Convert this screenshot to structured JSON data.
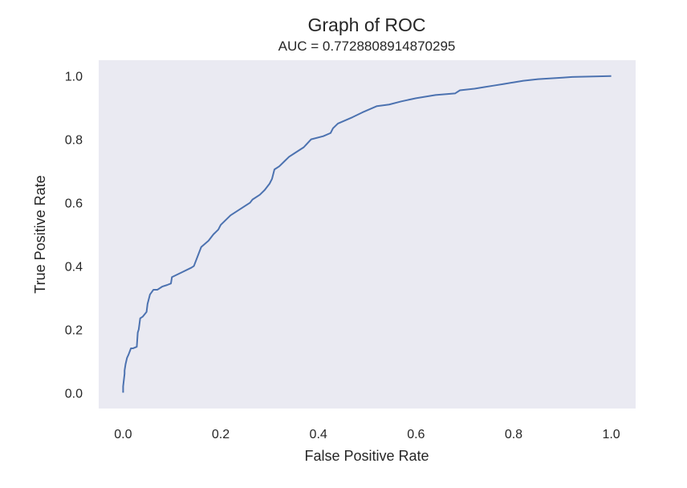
{
  "chart_data": {
    "type": "line",
    "title": "Graph of ROC",
    "subtitle": "AUC = 0.7728808914870295",
    "xlabel": "False Positive Rate",
    "ylabel": "True Positive Rate",
    "xlim": [
      -0.05,
      1.05
    ],
    "ylim": [
      -0.05,
      1.05
    ],
    "x_ticks": [
      "0.0",
      "0.2",
      "0.4",
      "0.6",
      "0.8",
      "1.0"
    ],
    "y_ticks": [
      "0.0",
      "0.2",
      "0.4",
      "0.6",
      "0.8",
      "1.0"
    ],
    "grid": false,
    "colors": {
      "plot_background": "#eaeaf2",
      "line": "#4c72b0"
    },
    "series": [
      {
        "x": [
          0.0,
          0.0,
          0.003,
          0.003,
          0.005,
          0.008,
          0.011,
          0.016,
          0.02,
          0.028,
          0.03,
          0.032,
          0.035,
          0.04,
          0.048,
          0.05,
          0.055,
          0.062,
          0.07,
          0.08,
          0.09,
          0.098,
          0.1,
          0.12,
          0.14,
          0.145,
          0.155,
          0.16,
          0.175,
          0.185,
          0.195,
          0.2,
          0.22,
          0.24,
          0.26,
          0.265,
          0.28,
          0.29,
          0.3,
          0.305,
          0.31,
          0.32,
          0.33,
          0.34,
          0.35,
          0.37,
          0.385,
          0.41,
          0.425,
          0.43,
          0.44,
          0.47,
          0.49,
          0.52,
          0.545,
          0.57,
          0.6,
          0.64,
          0.68,
          0.69,
          0.72,
          0.74,
          0.76,
          0.78,
          0.8,
          0.82,
          0.85,
          0.9,
          0.92,
          1.0
        ],
        "y": [
          0.0,
          0.02,
          0.06,
          0.07,
          0.09,
          0.11,
          0.12,
          0.14,
          0.14,
          0.145,
          0.19,
          0.2,
          0.235,
          0.24,
          0.255,
          0.28,
          0.31,
          0.325,
          0.325,
          0.335,
          0.34,
          0.345,
          0.365,
          0.38,
          0.395,
          0.4,
          0.44,
          0.46,
          0.48,
          0.5,
          0.515,
          0.53,
          0.56,
          0.58,
          0.6,
          0.61,
          0.625,
          0.64,
          0.66,
          0.675,
          0.705,
          0.715,
          0.73,
          0.745,
          0.755,
          0.775,
          0.8,
          0.81,
          0.82,
          0.835,
          0.85,
          0.87,
          0.885,
          0.905,
          0.91,
          0.92,
          0.93,
          0.94,
          0.945,
          0.955,
          0.96,
          0.965,
          0.97,
          0.975,
          0.98,
          0.985,
          0.99,
          0.995,
          0.997,
          1.0
        ]
      }
    ]
  }
}
